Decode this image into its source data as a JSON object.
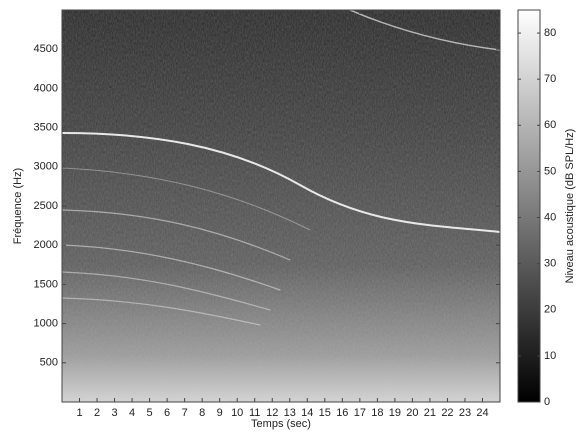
{
  "chart_data": {
    "type": "spectrogram",
    "xlabel": "Temps (sec)",
    "ylabel": "Fréquence (Hz)",
    "colorbar_label": "Niveau acoustique (dB SPL/Hz)",
    "xlim": [
      0,
      25
    ],
    "xticks": [
      1,
      2,
      3,
      4,
      5,
      6,
      7,
      8,
      9,
      10,
      11,
      12,
      13,
      14,
      15,
      16,
      17,
      18,
      19,
      20,
      21,
      22,
      23,
      24
    ],
    "ylim": [
      0,
      5000
    ],
    "yticks": [
      500,
      1000,
      1500,
      2000,
      2500,
      3000,
      3500,
      4000,
      4500
    ],
    "clim": [
      0,
      85
    ],
    "cticks": [
      0,
      10,
      20,
      30,
      40,
      50,
      60,
      70,
      80
    ],
    "colormap": [
      "#000000",
      "#ffffff"
    ]
  }
}
